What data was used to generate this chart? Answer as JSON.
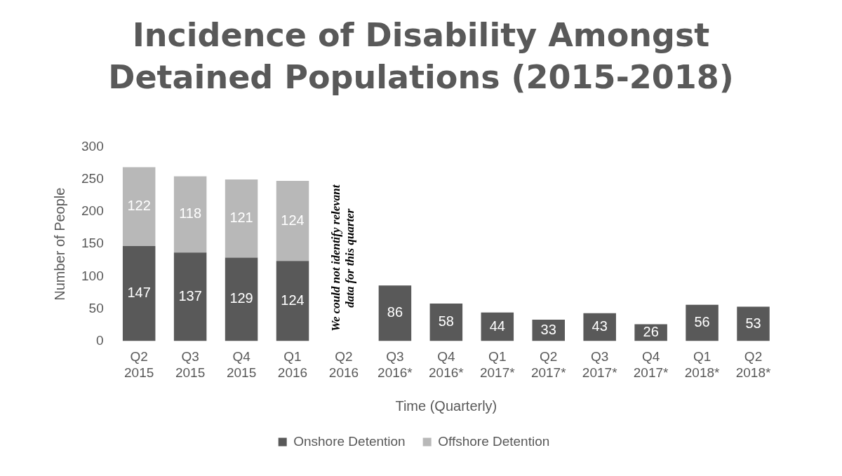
{
  "chart_data": {
    "type": "bar",
    "title": "Incidence of Disability Amongst Detained Populations (2015-2018)",
    "xlabel": "Time (Quarterly)",
    "ylabel": "Number of People",
    "categories": [
      "Q2 2015",
      "Q3 2015",
      "Q4 2015",
      "Q1 2016",
      "Q2 2016",
      "Q3 2016*",
      "Q4 2016*",
      "Q1 2017*",
      "Q2 2017*",
      "Q3 2017*",
      "Q4 2017*",
      "Q1 2018*",
      "Q2 2018*"
    ],
    "series": [
      {
        "name": "Onshore Detention",
        "color": "#595959",
        "values": [
          147,
          137,
          129,
          124,
          null,
          86,
          58,
          44,
          33,
          43,
          26,
          56,
          53
        ]
      },
      {
        "name": "Offshore Detention",
        "color": "#b8b8b8",
        "values": [
          122,
          118,
          121,
          124,
          null,
          null,
          null,
          null,
          null,
          null,
          null,
          null,
          null
        ]
      }
    ],
    "stacked": true,
    "data_labels": true,
    "ylim": [
      0,
      300
    ],
    "yticks": [
      0,
      50,
      100,
      150,
      200,
      250,
      300
    ],
    "grid": false,
    "legend": "bottom",
    "annotations": [
      "We could not identify relevant data for this quarter"
    ]
  }
}
